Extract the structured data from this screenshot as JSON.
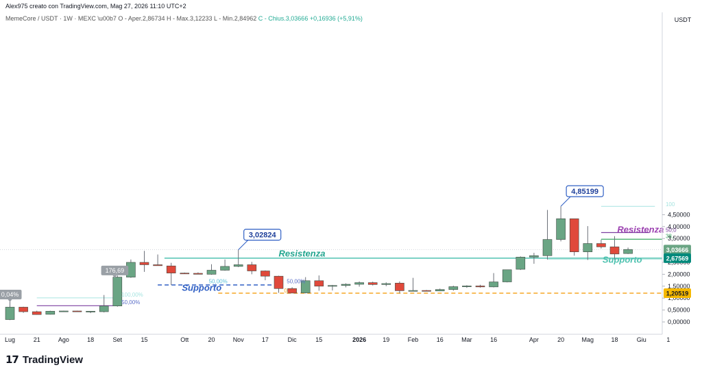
{
  "header": {
    "creator_line": "Alex975 creato con TradingView.com, Mag 27, 2026 11:10 UTC+2",
    "symbol": "MemeCore / USDT · 1W · MEXC",
    "open": "O - Aper.2,86734",
    "high": "H - Max.3,12233",
    "low": "L - Min.2,84962",
    "close": "C - Chius.3,03666 +0,16936 (+5,91%)"
  },
  "footer": {
    "logo_mark": "17",
    "logo_text": "TradingView",
    "logo_icon": "tradingview-logo"
  },
  "colors": {
    "up": "#6aa584",
    "down": "#e0493b",
    "teal": "#4fc2b0",
    "purple": "#7b3fa0",
    "blue": "#2f5fc4",
    "orange": "#f5a623",
    "green_line": "#3aa862",
    "light_teal": "#a6e4e0"
  },
  "chart_data": {
    "type": "candlestick",
    "currency_label": "USDT",
    "ylim": [
      -0.1,
      5.4
    ],
    "y_ticks": [
      {
        "v": 0.0,
        "t": "0,00000"
      },
      {
        "v": 0.5,
        "t": "0,50000"
      },
      {
        "v": 1.0,
        "t": "1,00000"
      },
      {
        "v": 1.5,
        "t": "1,50000"
      },
      {
        "v": 2.0,
        "t": "2,00000"
      },
      {
        "v": 2.5,
        "t": "2,50000"
      },
      {
        "v": 3.5,
        "t": "3,50000"
      },
      {
        "v": 4.0,
        "t": "4,00000"
      },
      {
        "v": 4.5,
        "t": "4,50000"
      }
    ],
    "x_ticks": [
      {
        "i": 0,
        "t": "Lug"
      },
      {
        "i": 2,
        "t": "21"
      },
      {
        "i": 4,
        "t": "Ago"
      },
      {
        "i": 6,
        "t": "18"
      },
      {
        "i": 8,
        "t": "Set"
      },
      {
        "i": 10,
        "t": "15"
      },
      {
        "i": 13,
        "t": "Ott"
      },
      {
        "i": 15,
        "t": "20"
      },
      {
        "i": 17,
        "t": "Nov"
      },
      {
        "i": 19,
        "t": "17"
      },
      {
        "i": 21,
        "t": "Dic"
      },
      {
        "i": 23,
        "t": "15"
      },
      {
        "i": 26,
        "t": "2026"
      },
      {
        "i": 28,
        "t": "19"
      },
      {
        "i": 30,
        "t": "Feb"
      },
      {
        "i": 32,
        "t": "16"
      },
      {
        "i": 34,
        "t": "Mar"
      },
      {
        "i": 36,
        "t": "16"
      },
      {
        "i": 39,
        "t": "Apr"
      },
      {
        "i": 41,
        "t": "20"
      },
      {
        "i": 43,
        "t": "Mag"
      },
      {
        "i": 45,
        "t": "18"
      },
      {
        "i": 47,
        "t": "Giu"
      },
      {
        "i": 49,
        "t": "1"
      }
    ],
    "candles": [
      {
        "o": 0.1,
        "h": 0.9,
        "l": 0.08,
        "c": 0.62
      },
      {
        "o": 0.62,
        "h": 0.64,
        "l": 0.38,
        "c": 0.43
      },
      {
        "o": 0.43,
        "h": 0.47,
        "l": 0.3,
        "c": 0.31
      },
      {
        "o": 0.32,
        "h": 0.47,
        "l": 0.31,
        "c": 0.45
      },
      {
        "o": 0.43,
        "h": 0.47,
        "l": 0.42,
        "c": 0.46
      },
      {
        "o": 0.46,
        "h": 0.47,
        "l": 0.42,
        "c": 0.44
      },
      {
        "o": 0.44,
        "h": 0.46,
        "l": 0.37,
        "c": 0.45
      },
      {
        "o": 0.43,
        "h": 1.13,
        "l": 0.4,
        "c": 0.67
      },
      {
        "o": 0.67,
        "h": 1.95,
        "l": 0.64,
        "c": 1.88
      },
      {
        "o": 1.88,
        "h": 2.62,
        "l": 1.85,
        "c": 2.5
      },
      {
        "o": 2.5,
        "h": 2.98,
        "l": 2.1,
        "c": 2.4
      },
      {
        "o": 2.4,
        "h": 2.83,
        "l": 2.38,
        "c": 2.36
      },
      {
        "o": 2.35,
        "h": 2.48,
        "l": 1.55,
        "c": 2.05
      },
      {
        "o": 2.05,
        "h": 2.07,
        "l": 2.03,
        "c": 2.04
      },
      {
        "o": 2.04,
        "h": 2.08,
        "l": 2.01,
        "c": 2.0
      },
      {
        "o": 2.0,
        "h": 2.42,
        "l": 1.98,
        "c": 2.17
      },
      {
        "o": 2.17,
        "h": 2.62,
        "l": 2.15,
        "c": 2.33
      },
      {
        "o": 2.33,
        "h": 3.03,
        "l": 2.3,
        "c": 2.4
      },
      {
        "o": 2.4,
        "h": 2.52,
        "l": 2.0,
        "c": 2.14
      },
      {
        "o": 2.14,
        "h": 2.16,
        "l": 1.75,
        "c": 1.92
      },
      {
        "o": 1.92,
        "h": 1.94,
        "l": 1.22,
        "c": 1.4
      },
      {
        "o": 1.4,
        "h": 1.46,
        "l": 1.21,
        "c": 1.21
      },
      {
        "o": 1.22,
        "h": 1.88,
        "l": 1.2,
        "c": 1.73
      },
      {
        "o": 1.73,
        "h": 1.95,
        "l": 1.31,
        "c": 1.5
      },
      {
        "o": 1.5,
        "h": 1.55,
        "l": 1.32,
        "c": 1.53
      },
      {
        "o": 1.53,
        "h": 1.62,
        "l": 1.45,
        "c": 1.58
      },
      {
        "o": 1.58,
        "h": 1.7,
        "l": 1.48,
        "c": 1.65
      },
      {
        "o": 1.65,
        "h": 1.69,
        "l": 1.53,
        "c": 1.57
      },
      {
        "o": 1.57,
        "h": 1.66,
        "l": 1.5,
        "c": 1.61
      },
      {
        "o": 1.63,
        "h": 1.7,
        "l": 1.2,
        "c": 1.31
      },
      {
        "o": 1.31,
        "h": 1.85,
        "l": 1.29,
        "c": 1.32
      },
      {
        "o": 1.32,
        "h": 1.34,
        "l": 1.28,
        "c": 1.31
      },
      {
        "o": 1.3,
        "h": 1.4,
        "l": 1.29,
        "c": 1.36
      },
      {
        "o": 1.36,
        "h": 1.52,
        "l": 1.31,
        "c": 1.48
      },
      {
        "o": 1.48,
        "h": 1.54,
        "l": 1.43,
        "c": 1.51
      },
      {
        "o": 1.51,
        "h": 1.56,
        "l": 1.44,
        "c": 1.47
      },
      {
        "o": 1.47,
        "h": 2.05,
        "l": 1.45,
        "c": 1.68
      },
      {
        "o": 1.68,
        "h": 2.19,
        "l": 1.66,
        "c": 2.19
      },
      {
        "o": 2.21,
        "h": 2.75,
        "l": 2.18,
        "c": 2.72
      },
      {
        "o": 2.72,
        "h": 2.9,
        "l": 2.44,
        "c": 2.78
      },
      {
        "o": 2.78,
        "h": 4.7,
        "l": 2.62,
        "c": 3.46
      },
      {
        "o": 3.46,
        "h": 4.85,
        "l": 3.38,
        "c": 4.33
      },
      {
        "o": 4.33,
        "h": 4.33,
        "l": 2.78,
        "c": 2.94
      },
      {
        "o": 2.94,
        "h": 4.02,
        "l": 2.6,
        "c": 3.29
      },
      {
        "o": 3.29,
        "h": 3.45,
        "l": 3.08,
        "c": 3.15
      },
      {
        "o": 3.15,
        "h": 3.6,
        "l": 2.6,
        "c": 2.85
      },
      {
        "o": 2.87,
        "h": 3.12,
        "l": 2.85,
        "c": 3.04
      }
    ],
    "last_price": {
      "v": 3.03666,
      "t": "3,03666"
    },
    "price_labels": [
      {
        "v": 2.67569,
        "t": "2,67569",
        "color": "#00897b"
      },
      {
        "v": 1.20519,
        "t": "1,20519",
        "color": "#f5b800"
      }
    ],
    "callouts": [
      {
        "t": "4,85199",
        "i": 41,
        "v": 4.85199
      },
      {
        "t": "3,02824",
        "i": 17,
        "v": 3.02824
      }
    ],
    "text_labels": [
      {
        "t": "Resistenza",
        "color": "#22a58f",
        "i": 20,
        "v": 2.75
      },
      {
        "t": "Supporto",
        "color": "#2f5fc4",
        "i": 12.8,
        "v": 1.31
      },
      {
        "t": "Resistenza",
        "color": "#9b3fb0",
        "i": 45.2,
        "v": 3.75
      },
      {
        "t": "Supporto",
        "color": "#4fc2b0",
        "i": 44.1,
        "v": 2.48
      }
    ],
    "fib_labels": [
      {
        "t": "50,00%",
        "i": 14.8,
        "v": 1.62,
        "color": "#5bc0d8"
      },
      {
        "t": "50,00%",
        "i": 20.6,
        "v": 1.63,
        "color": "#5b6fc8"
      },
      {
        "t": "50,00%",
        "i": 8.3,
        "v": 0.74,
        "color": "#5b6fc8"
      },
      {
        "t": "100,00%",
        "i": 8.3,
        "v": 1.07,
        "color": "#a6e4e0"
      },
      {
        "t": "176,69",
        "i": 7.8,
        "v": 2.16,
        "color": "#ffffff"
      },
      {
        "t": "0,04%",
        "i": 0.0,
        "v": 1.15,
        "color": "#ffffff"
      },
      {
        "t": "100",
        "i": 48.8,
        "v": 4.85,
        "color": "#a6e4e0"
      },
      {
        "t": "50,0",
        "i": 48.8,
        "v": 3.78,
        "color": "#7b3fa0"
      },
      {
        "t": "38,",
        "i": 48.8,
        "v": 3.52,
        "color": "#3aa862"
      },
      {
        "t": "0,",
        "i": 48.8,
        "v": 2.68,
        "color": "#4fc2b0"
      },
      {
        "t": "0,",
        "i": 20.4,
        "v": 1.23,
        "color": "#f5a623"
      }
    ],
    "levels": [
      {
        "v": 2.67569,
        "from": 11.5,
        "to": 49.5,
        "color": "#4fc2b0",
        "dash": false,
        "width": 1.5
      },
      {
        "v": 1.20519,
        "from": 15.5,
        "to": 49.5,
        "color": "#f5a623",
        "dash": true,
        "width": 1.5
      },
      {
        "v": 1.55,
        "from": 11.0,
        "to": 19.5,
        "color": "#2f5fc4",
        "dash": true,
        "width": 1.5
      },
      {
        "v": 0.68,
        "from": 2.0,
        "to": 8.0,
        "color": "#7b3fa0",
        "dash": false,
        "width": 1.2
      },
      {
        "v": 1.01,
        "from": 2.0,
        "to": 8.0,
        "color": "#a6e4e0",
        "dash": false,
        "width": 1.0
      },
      {
        "v": 3.75,
        "from": 44.0,
        "to": 47.6,
        "color": "#7b3fa0",
        "dash": false,
        "width": 1.3
      },
      {
        "v": 3.47,
        "from": 44.0,
        "to": 48.6,
        "color": "#3aa862",
        "dash": false,
        "width": 1.3
      },
      {
        "v": 4.85,
        "from": 44.0,
        "to": 48.0,
        "color": "#a6e4e0",
        "dash": false,
        "width": 1.0
      },
      {
        "v": 2.63,
        "from": 40.0,
        "to": 48.6,
        "color": "#b3e5df",
        "dash": false,
        "width": 1.0
      }
    ]
  }
}
